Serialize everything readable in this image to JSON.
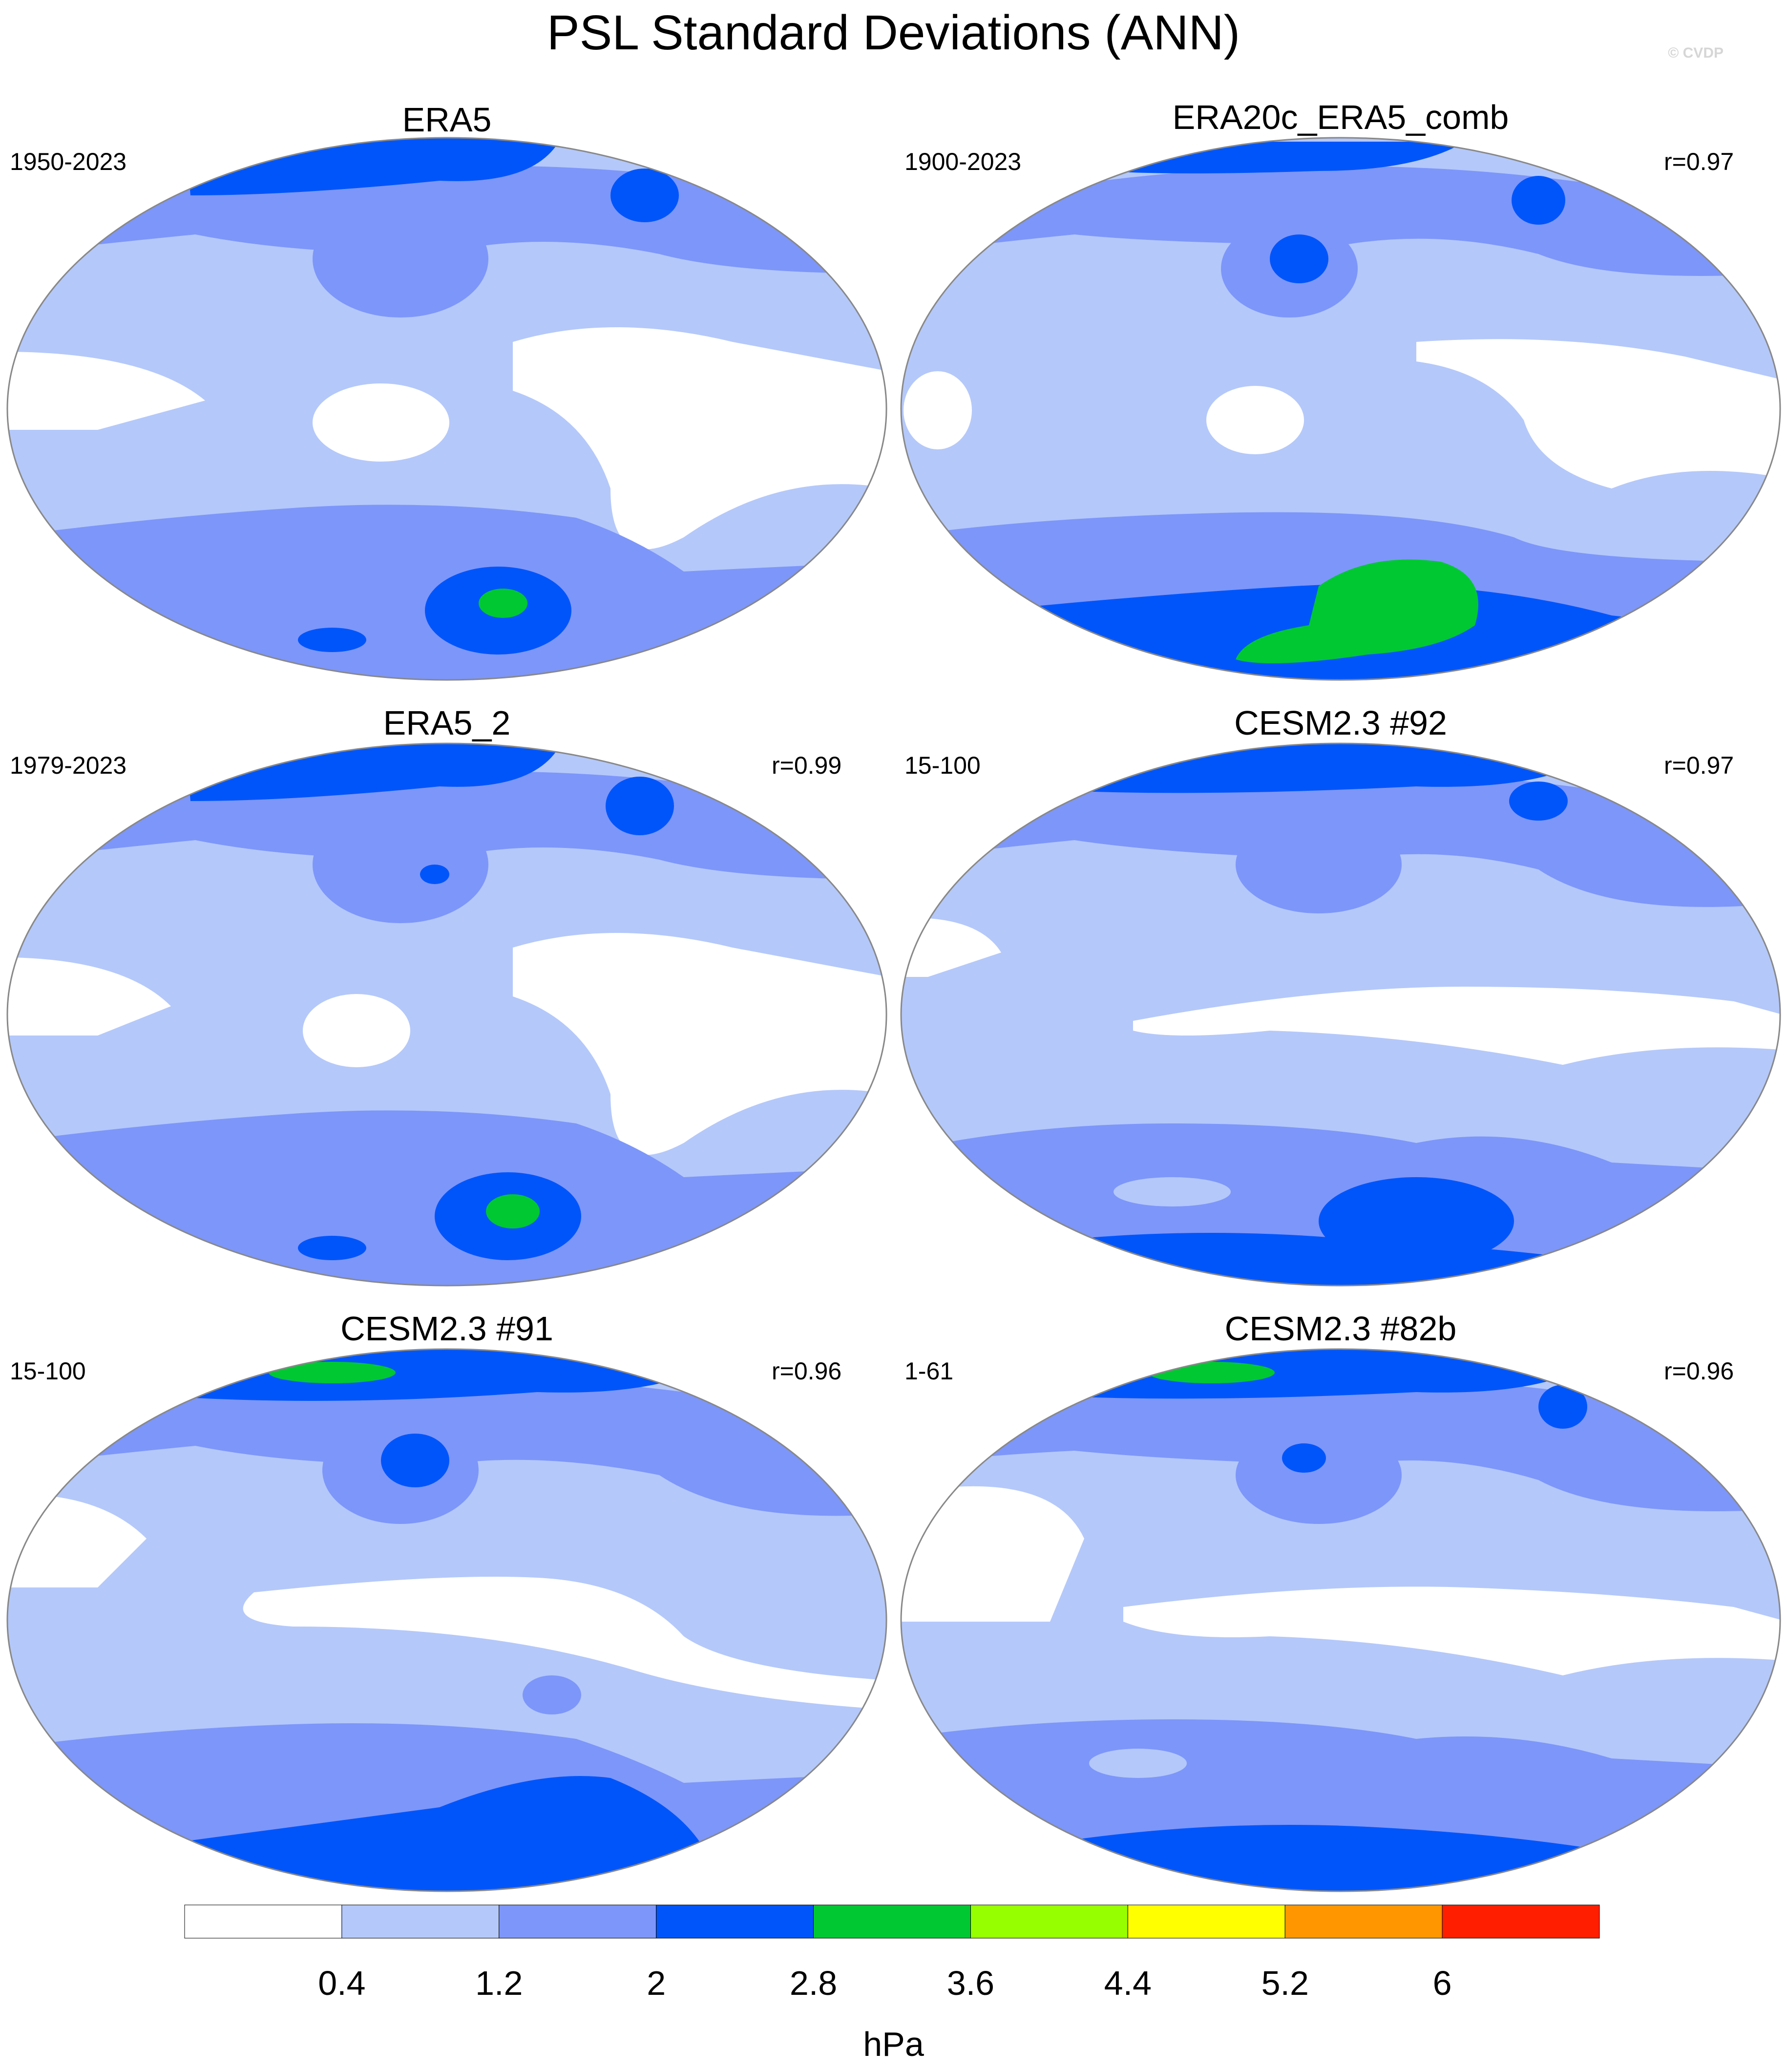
{
  "title": "PSL Standard Deviations (ANN)",
  "credit": "© CVDP",
  "panels": [
    {
      "name": "ERA5",
      "period": "1950-2023",
      "corr": ""
    },
    {
      "name": "ERA20c_ERA5_comb",
      "period": "1900-2023",
      "corr": "r=0.97"
    },
    {
      "name": "ERA5_2",
      "period": "1979-2023",
      "corr": "r=0.99"
    },
    {
      "name": "CESM2.3 #92",
      "period": "15-100",
      "corr": "r=0.97"
    },
    {
      "name": "CESM2.3 #91",
      "period": "15-100",
      "corr": "r=0.96"
    },
    {
      "name": "CESM2.3 #82b",
      "period": "1-61",
      "corr": "r=0.96"
    }
  ],
  "colorbar": {
    "unit": "hPa",
    "ticks": [
      "0.4",
      "1.2",
      "2",
      "2.8",
      "3.6",
      "4.4",
      "5.2",
      "6"
    ],
    "colors": [
      "#ffffff",
      "#b4c8fa",
      "#7d96fa",
      "#0055fa",
      "#00c832",
      "#96ff00",
      "#ffff00",
      "#ff9600",
      "#ff1e00"
    ]
  }
}
